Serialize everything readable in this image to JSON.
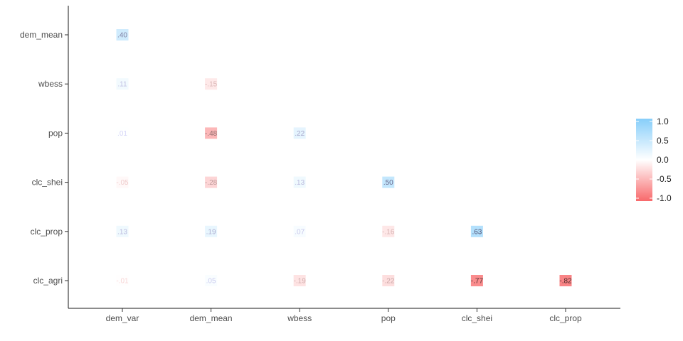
{
  "chart_data": {
    "type": "heatmap",
    "title": "",
    "xlabel": "",
    "ylabel": "",
    "x_categories": [
      "dem_var",
      "dem_mean",
      "wbess",
      "pop",
      "clc_shei",
      "clc_prop"
    ],
    "y_categories": [
      "dem_mean",
      "wbess",
      "pop",
      "clc_shei",
      "clc_prop",
      "clc_agri"
    ],
    "cells": [
      {
        "x": "dem_var",
        "y": "dem_mean",
        "value": 0.4,
        "label": ".40"
      },
      {
        "x": "dem_var",
        "y": "wbess",
        "value": 0.11,
        "label": ".11"
      },
      {
        "x": "dem_mean",
        "y": "wbess",
        "value": -0.15,
        "label": "-.15"
      },
      {
        "x": "dem_var",
        "y": "pop",
        "value": 0.01,
        "label": ".01"
      },
      {
        "x": "dem_mean",
        "y": "pop",
        "value": -0.48,
        "label": "-.48"
      },
      {
        "x": "wbess",
        "y": "pop",
        "value": 0.22,
        "label": ".22"
      },
      {
        "x": "dem_var",
        "y": "clc_shei",
        "value": -0.05,
        "label": "-.05"
      },
      {
        "x": "dem_mean",
        "y": "clc_shei",
        "value": -0.28,
        "label": "-.28"
      },
      {
        "x": "wbess",
        "y": "clc_shei",
        "value": 0.13,
        "label": ".13"
      },
      {
        "x": "pop",
        "y": "clc_shei",
        "value": 0.5,
        "label": ".50"
      },
      {
        "x": "dem_var",
        "y": "clc_prop",
        "value": 0.13,
        "label": ".13"
      },
      {
        "x": "dem_mean",
        "y": "clc_prop",
        "value": 0.19,
        "label": ".19"
      },
      {
        "x": "wbess",
        "y": "clc_prop",
        "value": 0.07,
        "label": ".07"
      },
      {
        "x": "pop",
        "y": "clc_prop",
        "value": -0.16,
        "label": "-.16"
      },
      {
        "x": "clc_shei",
        "y": "clc_prop",
        "value": 0.63,
        "label": ".63"
      },
      {
        "x": "dem_var",
        "y": "clc_agri",
        "value": -0.01,
        "label": "-.01"
      },
      {
        "x": "dem_mean",
        "y": "clc_agri",
        "value": 0.05,
        "label": ".05"
      },
      {
        "x": "wbess",
        "y": "clc_agri",
        "value": -0.19,
        "label": "-.19"
      },
      {
        "x": "pop",
        "y": "clc_agri",
        "value": -0.22,
        "label": "-.22"
      },
      {
        "x": "clc_shei",
        "y": "clc_agri",
        "value": -0.77,
        "label": "-.77"
      },
      {
        "x": "clc_prop",
        "y": "clc_agri",
        "value": -0.82,
        "label": "-.82"
      }
    ],
    "color_scale": {
      "low": "#f8696b",
      "mid": "#ffffff",
      "high": "#87cefa",
      "limits": [
        -1.0,
        1.0
      ]
    },
    "legend": {
      "position": "right",
      "ticks": [
        1.0,
        0.5,
        0.0,
        -0.5,
        -1.0
      ],
      "tick_labels": [
        "1.0",
        "0.5",
        "0.0",
        "-0.5",
        "-1.0"
      ]
    },
    "grid": false
  }
}
